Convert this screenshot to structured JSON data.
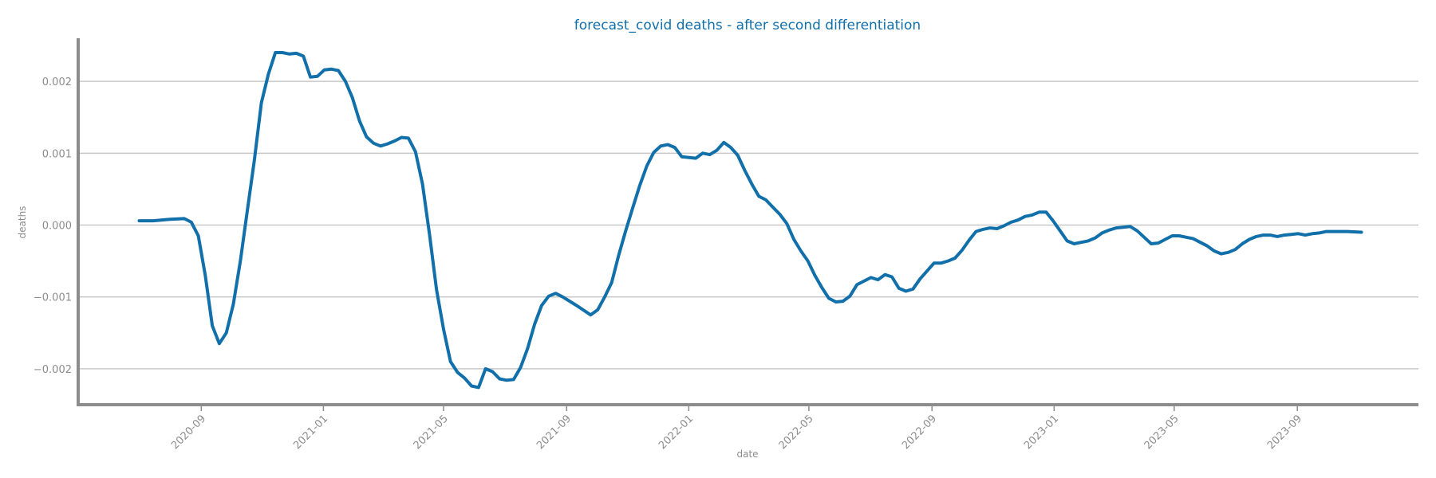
{
  "chart_data": {
    "type": "line",
    "title": "forecast_covid deaths - after second differentiation",
    "xlabel": "date",
    "ylabel": "deaths",
    "grid": "horizontal",
    "xlim": [
      "2020-05-01",
      "2023-12-31"
    ],
    "ylim": [
      -0.0025,
      0.0026
    ],
    "x_ticks": [
      "2020-09",
      "2021-01",
      "2021-05",
      "2021-09",
      "2022-01",
      "2022-05",
      "2022-09",
      "2023-01",
      "2023-05",
      "2023-09"
    ],
    "y_ticks": [
      {
        "value": 0.002,
        "label": "0.002"
      },
      {
        "value": 0.001,
        "label": "0.001"
      },
      {
        "value": 0.0,
        "label": "0.000"
      },
      {
        "value": -0.001,
        "label": "−0.001"
      },
      {
        "value": -0.002,
        "label": "−0.002"
      }
    ],
    "series": [
      {
        "color": "#1170aa",
        "points": [
          [
            "2020-07-01",
            6e-05
          ],
          [
            "2020-07-15",
            6e-05
          ],
          [
            "2020-08-01",
            8e-05
          ],
          [
            "2020-08-15",
            9e-05
          ],
          [
            "2020-08-22",
            4e-05
          ],
          [
            "2020-08-29",
            -0.00015
          ],
          [
            "2020-09-05",
            -0.0007
          ],
          [
            "2020-09-12",
            -0.0014
          ],
          [
            "2020-09-19",
            -0.00165
          ],
          [
            "2020-09-26",
            -0.0015
          ],
          [
            "2020-10-03",
            -0.0011
          ],
          [
            "2020-10-10",
            -0.0005
          ],
          [
            "2020-10-17",
            0.0002
          ],
          [
            "2020-10-24",
            0.0009
          ],
          [
            "2020-10-31",
            0.0017
          ],
          [
            "2020-11-07",
            0.0021
          ],
          [
            "2020-11-14",
            0.0024
          ],
          [
            "2020-11-21",
            0.0024
          ],
          [
            "2020-11-28",
            0.00238
          ],
          [
            "2020-12-05",
            0.00239
          ],
          [
            "2020-12-12",
            0.00235
          ],
          [
            "2020-12-19",
            0.00206
          ],
          [
            "2020-12-26",
            0.00207
          ],
          [
            "2021-01-02",
            0.00216
          ],
          [
            "2021-01-09",
            0.00217
          ],
          [
            "2021-01-16",
            0.00215
          ],
          [
            "2021-01-23",
            0.002
          ],
          [
            "2021-01-30",
            0.00177
          ],
          [
            "2021-02-06",
            0.00145
          ],
          [
            "2021-02-13",
            0.00123
          ],
          [
            "2021-02-20",
            0.00114
          ],
          [
            "2021-02-27",
            0.0011
          ],
          [
            "2021-03-06",
            0.00113
          ],
          [
            "2021-03-13",
            0.00117
          ],
          [
            "2021-03-20",
            0.00122
          ],
          [
            "2021-03-27",
            0.00121
          ],
          [
            "2021-04-03",
            0.00102
          ],
          [
            "2021-04-10",
            0.00057
          ],
          [
            "2021-04-17",
            -0.00013
          ],
          [
            "2021-04-24",
            -0.0009
          ],
          [
            "2021-05-01",
            -0.00145
          ],
          [
            "2021-05-08",
            -0.0019
          ],
          [
            "2021-05-15",
            -0.00205
          ],
          [
            "2021-05-22",
            -0.00213
          ],
          [
            "2021-05-29",
            -0.00224
          ],
          [
            "2021-06-05",
            -0.00226
          ],
          [
            "2021-06-12",
            -0.002
          ],
          [
            "2021-06-19",
            -0.00204
          ],
          [
            "2021-06-26",
            -0.00214
          ],
          [
            "2021-07-03",
            -0.00216
          ],
          [
            "2021-07-10",
            -0.00215
          ],
          [
            "2021-07-17",
            -0.00198
          ],
          [
            "2021-07-24",
            -0.00172
          ],
          [
            "2021-07-31",
            -0.00138
          ],
          [
            "2021-08-07",
            -0.00112
          ],
          [
            "2021-08-14",
            -0.00099
          ],
          [
            "2021-08-21",
            -0.00095
          ],
          [
            "2021-08-28",
            -0.001
          ],
          [
            "2021-09-11",
            -0.00112
          ],
          [
            "2021-09-25",
            -0.00125
          ],
          [
            "2021-10-02",
            -0.00118
          ],
          [
            "2021-10-09",
            -0.001
          ],
          [
            "2021-10-16",
            -0.0008
          ],
          [
            "2021-10-23",
            -0.00042
          ],
          [
            "2021-10-30",
            -8e-05
          ],
          [
            "2021-11-06",
            0.00024
          ],
          [
            "2021-11-13",
            0.00055
          ],
          [
            "2021-11-20",
            0.00082
          ],
          [
            "2021-11-27",
            0.00101
          ],
          [
            "2021-12-04",
            0.0011
          ],
          [
            "2021-12-11",
            0.00112
          ],
          [
            "2021-12-18",
            0.00108
          ],
          [
            "2021-12-25",
            0.00095
          ],
          [
            "2022-01-08",
            0.00093
          ],
          [
            "2022-01-15",
            0.001
          ],
          [
            "2022-01-22",
            0.00098
          ],
          [
            "2022-01-29",
            0.00104
          ],
          [
            "2022-02-05",
            0.00115
          ],
          [
            "2022-02-12",
            0.00108
          ],
          [
            "2022-02-19",
            0.00097
          ],
          [
            "2022-02-26",
            0.00076
          ],
          [
            "2022-03-05",
            0.00057
          ],
          [
            "2022-03-12",
            0.0004
          ],
          [
            "2022-03-19",
            0.00035
          ],
          [
            "2022-03-26",
            0.00025
          ],
          [
            "2022-04-02",
            0.00015
          ],
          [
            "2022-04-09",
            2e-05
          ],
          [
            "2022-04-16",
            -0.0002
          ],
          [
            "2022-04-23",
            -0.00036
          ],
          [
            "2022-04-30",
            -0.0005
          ],
          [
            "2022-05-07",
            -0.0007
          ],
          [
            "2022-05-14",
            -0.00087
          ],
          [
            "2022-05-21",
            -0.00102
          ],
          [
            "2022-05-28",
            -0.00107
          ],
          [
            "2022-06-04",
            -0.00106
          ],
          [
            "2022-06-11",
            -0.00099
          ],
          [
            "2022-06-18",
            -0.00083
          ],
          [
            "2022-06-25",
            -0.00078
          ],
          [
            "2022-07-02",
            -0.00073
          ],
          [
            "2022-07-09",
            -0.00076
          ],
          [
            "2022-07-16",
            -0.00069
          ],
          [
            "2022-07-23",
            -0.00072
          ],
          [
            "2022-07-30",
            -0.00088
          ],
          [
            "2022-08-06",
            -0.00092
          ],
          [
            "2022-08-13",
            -0.00089
          ],
          [
            "2022-08-20",
            -0.00075
          ],
          [
            "2022-08-27",
            -0.00064
          ],
          [
            "2022-09-03",
            -0.00053
          ],
          [
            "2022-09-10",
            -0.00053
          ],
          [
            "2022-09-17",
            -0.0005
          ],
          [
            "2022-09-24",
            -0.00046
          ],
          [
            "2022-10-01",
            -0.00035
          ],
          [
            "2022-10-08",
            -0.00021
          ],
          [
            "2022-10-15",
            -9e-05
          ],
          [
            "2022-10-22",
            -6e-05
          ],
          [
            "2022-10-29",
            -4e-05
          ],
          [
            "2022-11-05",
            -5e-05
          ],
          [
            "2022-11-12",
            -1e-05
          ],
          [
            "2022-11-19",
            4e-05
          ],
          [
            "2022-11-26",
            7e-05
          ],
          [
            "2022-12-03",
            0.00012
          ],
          [
            "2022-12-10",
            0.00014
          ],
          [
            "2022-12-17",
            0.00018
          ],
          [
            "2022-12-24",
            0.00018
          ],
          [
            "2022-12-31",
            6e-05
          ],
          [
            "2023-01-07",
            -8e-05
          ],
          [
            "2023-01-14",
            -0.00022
          ],
          [
            "2023-01-21",
            -0.00026
          ],
          [
            "2023-01-28",
            -0.00024
          ],
          [
            "2023-02-04",
            -0.00022
          ],
          [
            "2023-02-11",
            -0.00018
          ],
          [
            "2023-02-18",
            -0.00011
          ],
          [
            "2023-02-25",
            -7e-05
          ],
          [
            "2023-03-04",
            -4e-05
          ],
          [
            "2023-03-11",
            -3e-05
          ],
          [
            "2023-03-18",
            -2e-05
          ],
          [
            "2023-03-25",
            -8e-05
          ],
          [
            "2023-04-01",
            -0.00017
          ],
          [
            "2023-04-08",
            -0.00026
          ],
          [
            "2023-04-15",
            -0.00025
          ],
          [
            "2023-04-22",
            -0.0002
          ],
          [
            "2023-04-29",
            -0.00015
          ],
          [
            "2023-05-06",
            -0.00015
          ],
          [
            "2023-05-13",
            -0.00017
          ],
          [
            "2023-05-20",
            -0.00019
          ],
          [
            "2023-05-27",
            -0.00024
          ],
          [
            "2023-06-03",
            -0.00029
          ],
          [
            "2023-06-10",
            -0.00036
          ],
          [
            "2023-06-17",
            -0.0004
          ],
          [
            "2023-06-24",
            -0.00038
          ],
          [
            "2023-07-01",
            -0.00034
          ],
          [
            "2023-07-08",
            -0.00026
          ],
          [
            "2023-07-15",
            -0.0002
          ],
          [
            "2023-07-22",
            -0.00016
          ],
          [
            "2023-07-29",
            -0.00014
          ],
          [
            "2023-08-05",
            -0.00014
          ],
          [
            "2023-08-12",
            -0.00016
          ],
          [
            "2023-08-19",
            -0.00014
          ],
          [
            "2023-08-26",
            -0.00013
          ],
          [
            "2023-09-02",
            -0.00012
          ],
          [
            "2023-09-09",
            -0.00014
          ],
          [
            "2023-09-16",
            -0.00012
          ],
          [
            "2023-09-23",
            -0.00011
          ],
          [
            "2023-09-30",
            -9e-05
          ],
          [
            "2023-10-07",
            -9e-05
          ],
          [
            "2023-10-21",
            -9e-05
          ],
          [
            "2023-11-04",
            -0.0001
          ]
        ]
      }
    ]
  },
  "colors": {
    "line": "#1170aa",
    "title": "#1170aa",
    "axis": "#8c8c8c",
    "grid": "#c8c8c8",
    "tick_label": "#8c8c8c"
  }
}
